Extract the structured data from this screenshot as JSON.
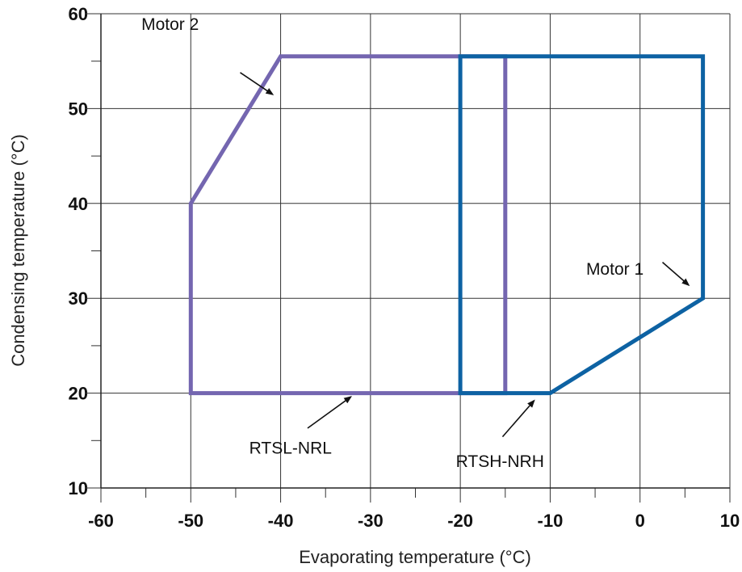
{
  "chart_data": {
    "type": "line",
    "title": "",
    "xlabel": "Evaporating temperature (°C)",
    "ylabel": "Condensing temperature (°C)",
    "xlim": [
      -60,
      10
    ],
    "ylim": [
      10,
      60
    ],
    "x_ticks": [
      -60,
      -50,
      -40,
      -30,
      -20,
      -10,
      0,
      10
    ],
    "y_ticks": [
      10,
      20,
      30,
      40,
      50,
      60
    ],
    "x_minor_step": 5,
    "y_minor_step": 5,
    "grid": true,
    "legend": "none",
    "series": [
      {
        "color": "#7466b0",
        "points": [
          {
            "x": -50,
            "y": 20
          },
          {
            "x": -50,
            "y": 40
          },
          {
            "x": -40,
            "y": 55.5
          },
          {
            "x": -15,
            "y": 55.5
          },
          {
            "x": -15,
            "y": 20
          },
          {
            "x": -50,
            "y": 20
          }
        ]
      },
      {
        "color": "#0d62a3",
        "points": [
          {
            "x": -20,
            "y": 20
          },
          {
            "x": -20,
            "y": 55.5
          },
          {
            "x": 7,
            "y": 55.5
          },
          {
            "x": 7,
            "y": 30
          },
          {
            "x": -10,
            "y": 20
          },
          {
            "x": -20,
            "y": 20
          }
        ]
      }
    ],
    "annotations": [
      {
        "text": "Motor 2",
        "label_x": -55.5,
        "label_y": 58.3,
        "arrow_from": {
          "x": -44.5,
          "y": 53.8
        },
        "arrow_to": {
          "x": -40.9,
          "y": 51.5
        }
      },
      {
        "text": "Motor 1",
        "label_x": -6,
        "label_y": 32.5,
        "arrow_from": {
          "x": 2.5,
          "y": 33.8
        },
        "arrow_to": {
          "x": 5.4,
          "y": 31.4
        }
      },
      {
        "text": "RTSL-NRL",
        "label_x": -43.5,
        "label_y": 13.6,
        "arrow_from": {
          "x": -37,
          "y": 16.3
        },
        "arrow_to": {
          "x": -32.2,
          "y": 19.6
        }
      },
      {
        "text": "RTSH-NRH",
        "label_x": -20.5,
        "label_y": 12.2,
        "arrow_from": {
          "x": -15.3,
          "y": 15.4
        },
        "arrow_to": {
          "x": -11.8,
          "y": 19.2
        }
      }
    ]
  }
}
